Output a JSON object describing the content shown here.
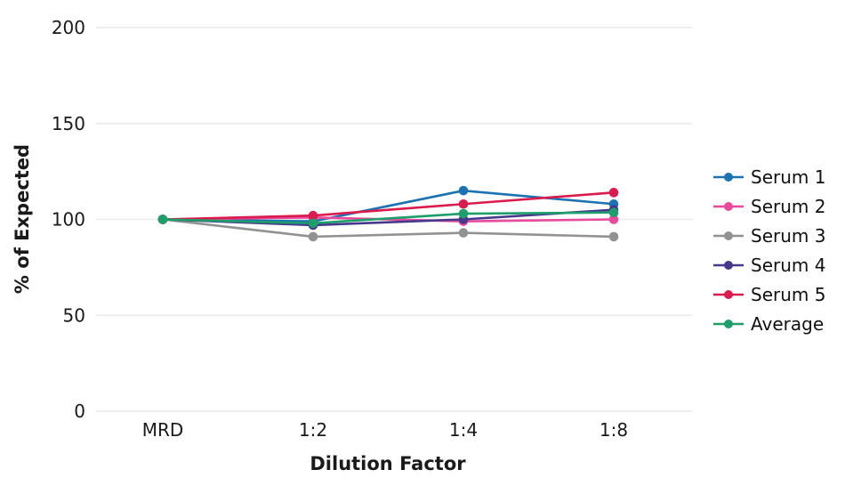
{
  "chart_data": {
    "type": "line",
    "title": "",
    "xlabel": "Dilution Factor",
    "ylabel": "% of Expected",
    "categories": [
      "MRD",
      "1:2",
      "1:4",
      "1:8"
    ],
    "y_ticks": [
      0,
      50,
      100,
      150,
      200
    ],
    "ylim": [
      0,
      200
    ],
    "grid": "horizontal",
    "gridline_color": "#e9e9e9",
    "tick_label_color": "#1a1a1a",
    "legend_position": "right",
    "series": [
      {
        "name": "Serum 1",
        "color": "#1d72b2",
        "values": [
          100,
          99,
          115,
          108
        ]
      },
      {
        "name": "Serum 2",
        "color": "#e94a9c",
        "values": [
          100,
          101,
          99,
          100
        ]
      },
      {
        "name": "Serum 3",
        "color": "#929292",
        "values": [
          100,
          91,
          93,
          91
        ]
      },
      {
        "name": "Serum 4",
        "color": "#47388c",
        "values": [
          100,
          97,
          100,
          105
        ]
      },
      {
        "name": "Serum 5",
        "color": "#d91b4d",
        "values": [
          100,
          102,
          108,
          114
        ]
      },
      {
        "name": "Average",
        "color": "#1d9e6a",
        "values": [
          100,
          98,
          103,
          103.6
        ]
      }
    ]
  }
}
